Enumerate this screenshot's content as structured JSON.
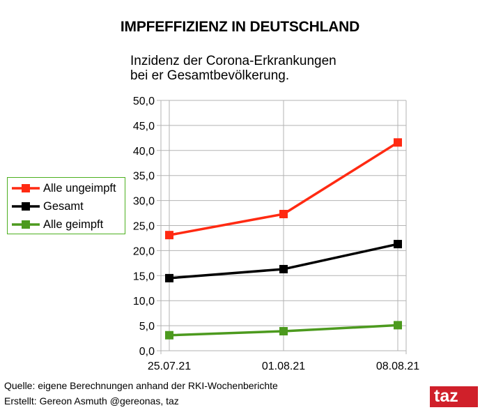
{
  "title": "IMPFEFFIZIENZ IN DEUTSCHLAND",
  "subtitle_lines": [
    "Inzidenz der Corona-Erkrankungen",
    "bei er Gesamtbevölkerung."
  ],
  "chart_data": {
    "type": "line",
    "title": "Inzidenz der Corona-Erkrankungen bei er Gesamtbevölkerung.",
    "x": [
      "25.07.21",
      "01.08.21",
      "08.08.21"
    ],
    "ylim": [
      0,
      50
    ],
    "ytick_step": 5,
    "yticks": [
      "0,0",
      "5,0",
      "10,0",
      "15,0",
      "20,0",
      "25,0",
      "30,0",
      "35,0",
      "40,0",
      "45,0",
      "50,0"
    ],
    "grid": true,
    "legend_position": "left",
    "series": [
      {
        "name": "Alle ungeimpft",
        "values": [
          23.1,
          27.3,
          41.6
        ],
        "color": "#ff2a12"
      },
      {
        "name": "Gesamt",
        "values": [
          14.5,
          16.3,
          21.3
        ],
        "color": "#000000"
      },
      {
        "name": "Alle geimpft",
        "values": [
          3.1,
          3.9,
          5.1
        ],
        "color": "#4c9a1e"
      }
    ]
  },
  "footer": {
    "source": "Quelle: eigene Berechnungen anhand der RKI-Wochenberichte",
    "author": "Erstellt: Gereon Asmuth @gereonas, taz"
  },
  "logo": "taz"
}
